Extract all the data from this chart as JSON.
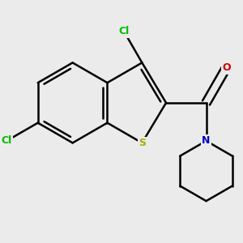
{
  "background_color": "#ebebeb",
  "atom_colors": {
    "C": "#000000",
    "Cl": "#00bb00",
    "S": "#aaaa00",
    "N": "#0000cc",
    "O": "#cc0000"
  },
  "bond_color": "#000000",
  "bond_width": 1.8,
  "figsize": [
    3.0,
    3.0
  ],
  "dpi": 100
}
